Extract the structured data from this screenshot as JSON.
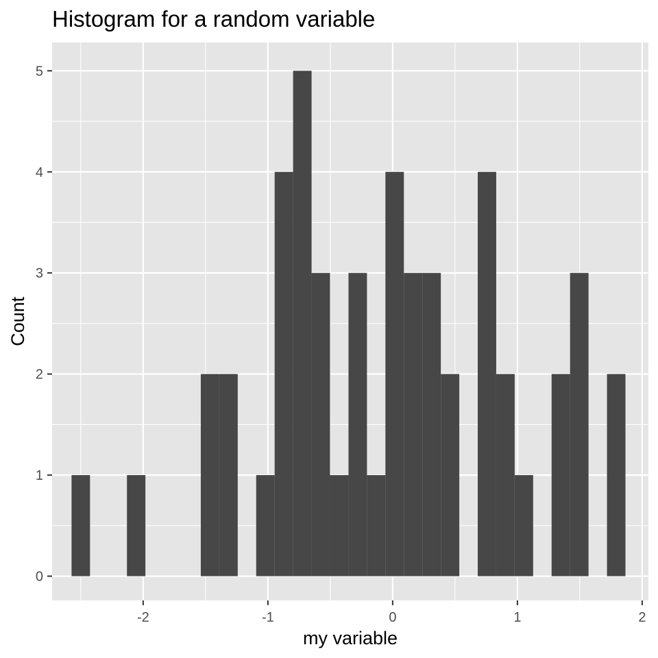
{
  "chart_data": {
    "type": "bar",
    "subtype": "histogram",
    "title": "Histogram for a random variable",
    "xlabel": "my variable",
    "ylabel": "Count",
    "xlim": [
      -2.73,
      2.05
    ],
    "ylim": [
      -0.24,
      5.28
    ],
    "x_ticks": [
      -2,
      -1,
      0,
      1,
      2
    ],
    "x_tick_labels": [
      "-2",
      "-1",
      "0",
      "1",
      "2"
    ],
    "y_ticks": [
      0,
      1,
      2,
      3,
      4,
      5
    ],
    "y_tick_labels": [
      "0",
      "1",
      "2",
      "3",
      "4",
      "5"
    ],
    "bin_width": 0.148,
    "bin_centers": [
      -2.5,
      -2.352,
      -2.204,
      -2.056,
      -1.908,
      -1.76,
      -1.612,
      -1.464,
      -1.316,
      -1.168,
      -1.02,
      -0.872,
      -0.724,
      -0.576,
      -0.428,
      -0.28,
      -0.132,
      0.016,
      0.164,
      0.312,
      0.46,
      0.608,
      0.756,
      0.904,
      1.052,
      1.2,
      1.348,
      1.496,
      1.644,
      1.792
    ],
    "values": [
      1,
      0,
      0,
      1,
      0,
      0,
      0,
      2,
      2,
      0,
      1,
      4,
      5,
      3,
      1,
      3,
      1,
      4,
      3,
      3,
      2,
      0,
      4,
      2,
      1,
      0,
      2,
      3,
      0,
      2
    ],
    "grid": true,
    "panel_background": "#e5e5e5",
    "grid_color": "#ffffff",
    "bar_color": "#474747"
  }
}
